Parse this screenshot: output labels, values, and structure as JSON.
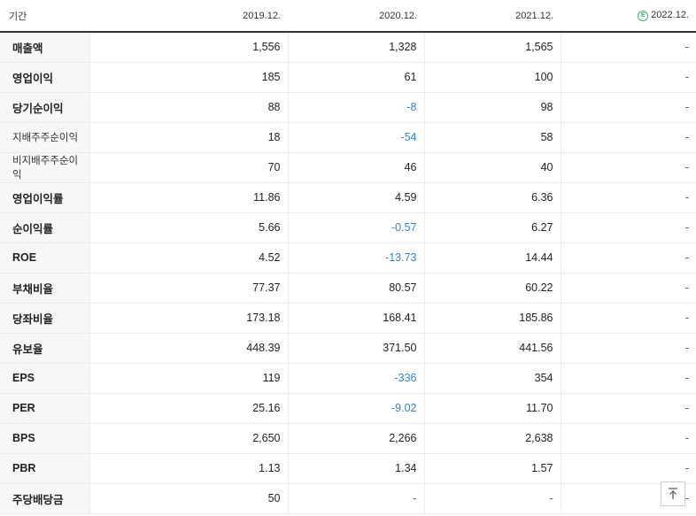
{
  "header": {
    "label": "기간",
    "periods": [
      "2019.12.",
      "2020.12.",
      "2021.12.",
      "2022.12."
    ],
    "estimate_badge": "E"
  },
  "rows": [
    {
      "label": "매출액",
      "values": [
        "1,556",
        "1,328",
        "1,565",
        "-"
      ]
    },
    {
      "label": "영업이익",
      "values": [
        "185",
        "61",
        "100",
        "-"
      ]
    },
    {
      "label": "당기순이익",
      "values": [
        "88",
        "-8",
        "98",
        "-"
      ]
    },
    {
      "label": "지배주주순이익",
      "values": [
        "18",
        "-54",
        "58",
        "-"
      ]
    },
    {
      "label": "비지배주주순이익",
      "values": [
        "70",
        "46",
        "40",
        "-"
      ]
    },
    {
      "label": "영업이익률",
      "values": [
        "11.86",
        "4.59",
        "6.36",
        "-"
      ]
    },
    {
      "label": "순이익률",
      "values": [
        "5.66",
        "-0.57",
        "6.27",
        "-"
      ]
    },
    {
      "label": "ROE",
      "values": [
        "4.52",
        "-13.73",
        "14.44",
        "-"
      ]
    },
    {
      "label": "부채비율",
      "values": [
        "77.37",
        "80.57",
        "60.22",
        "-"
      ]
    },
    {
      "label": "당좌비율",
      "values": [
        "173.18",
        "168.41",
        "185.86",
        "-"
      ]
    },
    {
      "label": "유보율",
      "values": [
        "448.39",
        "371.50",
        "441.56",
        "-"
      ]
    },
    {
      "label": "EPS",
      "values": [
        "119",
        "-336",
        "354",
        "-"
      ]
    },
    {
      "label": "PER",
      "values": [
        "25.16",
        "-9.02",
        "11.70",
        "-"
      ]
    },
    {
      "label": "BPS",
      "values": [
        "2,650",
        "2,266",
        "2,638",
        "-"
      ]
    },
    {
      "label": "PBR",
      "values": [
        "1.13",
        "1.34",
        "1.57",
        "-"
      ]
    },
    {
      "label": "주당배당금",
      "values": [
        "50",
        "-",
        "-",
        "-"
      ]
    }
  ],
  "colors": {
    "negative": "#2f84d8",
    "estimate": "#3cb371"
  },
  "icons": {
    "scroll_top": "arrow-up-to-line-icon"
  }
}
